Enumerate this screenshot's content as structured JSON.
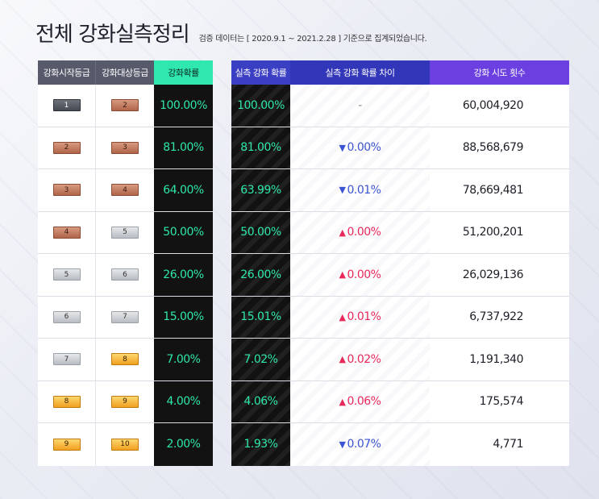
{
  "header": {
    "title": "전체 강화실측정리",
    "subtitle": "검증 데이터는 [ 2020.9.1 ~ 2021.2.28 ] 기준으로 집계되었습니다."
  },
  "columns": {
    "start": "강화시작등급",
    "target": "강화대상등급",
    "prob": "강화확률",
    "actual": "실측 강화 확률",
    "diff": "실측 강화 확률 차이",
    "count": "강화 시도 횟수"
  },
  "colors": {
    "prob_header": "#2ee8b0",
    "actual_header": "#3b3fc4",
    "diff_header": "#3236b8",
    "count_header": "#6b3fe0",
    "up": "#e8285a",
    "down": "#3c54d4"
  },
  "rows": [
    {
      "start": "1",
      "start_tier": "black",
      "target": "2",
      "target_tier": "bronze",
      "prob": "100.00%",
      "actual": "100.00%",
      "diff": "-",
      "dir": "none",
      "count": "60,004,920"
    },
    {
      "start": "2",
      "start_tier": "bronze",
      "target": "3",
      "target_tier": "bronze",
      "prob": "81.00%",
      "actual": "81.00%",
      "diff": "0.00%",
      "dir": "down",
      "count": "88,568,679"
    },
    {
      "start": "3",
      "start_tier": "bronze",
      "target": "4",
      "target_tier": "bronze",
      "prob": "64.00%",
      "actual": "63.99%",
      "diff": "0.01%",
      "dir": "down",
      "count": "78,669,481"
    },
    {
      "start": "4",
      "start_tier": "bronze",
      "target": "5",
      "target_tier": "silver",
      "prob": "50.00%",
      "actual": "50.00%",
      "diff": "0.00%",
      "dir": "up",
      "count": "51,200,201"
    },
    {
      "start": "5",
      "start_tier": "silver",
      "target": "6",
      "target_tier": "silver",
      "prob": "26.00%",
      "actual": "26.00%",
      "diff": "0.00%",
      "dir": "up",
      "count": "26,029,136"
    },
    {
      "start": "6",
      "start_tier": "silver",
      "target": "7",
      "target_tier": "silver",
      "prob": "15.00%",
      "actual": "15.01%",
      "diff": "0.01%",
      "dir": "up",
      "count": "6,737,922"
    },
    {
      "start": "7",
      "start_tier": "silver",
      "target": "8",
      "target_tier": "gold",
      "prob": "7.00%",
      "actual": "7.02%",
      "diff": "0.02%",
      "dir": "up",
      "count": "1,191,340"
    },
    {
      "start": "8",
      "start_tier": "gold",
      "target": "9",
      "target_tier": "gold",
      "prob": "4.00%",
      "actual": "4.06%",
      "diff": "0.06%",
      "dir": "up",
      "count": "175,574"
    },
    {
      "start": "9",
      "start_tier": "gold",
      "target": "10",
      "target_tier": "gold",
      "prob": "2.00%",
      "actual": "1.93%",
      "diff": "0.07%",
      "dir": "down",
      "count": "4,771"
    }
  ]
}
